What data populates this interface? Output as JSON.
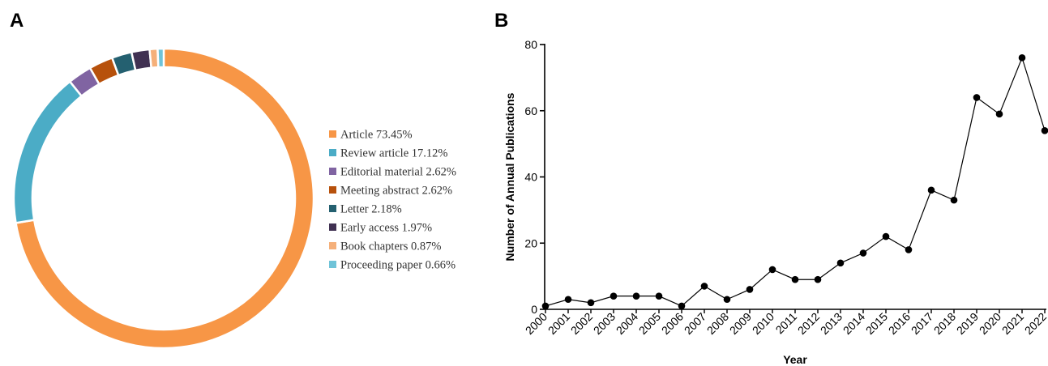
{
  "panels": {
    "a_letter": "A",
    "b_letter": "B"
  },
  "chart_data": [
    {
      "type": "pie",
      "style": "donut",
      "legend_position": "right",
      "slices": [
        {
          "label": "Article 73.45%",
          "value": 73.45,
          "color": "#F79646"
        },
        {
          "label": "Review article 17.12%",
          "value": 17.12,
          "color": "#4BACC6"
        },
        {
          "label": "Editorial material 2.62%",
          "value": 2.62,
          "color": "#8064A2"
        },
        {
          "label": "Meeting abstract 2.62%",
          "value": 2.62,
          "color": "#B7510C"
        },
        {
          "label": "Letter 2.18%",
          "value": 2.18,
          "color": "#246070"
        },
        {
          "label": "Early access 1.97%",
          "value": 1.97,
          "color": "#403152"
        },
        {
          "label": "Book chapters 0.87%",
          "value": 0.87,
          "color": "#F5B07A"
        },
        {
          "label": "Proceeding paper 0.66%",
          "value": 0.66,
          "color": "#6FC3D8"
        }
      ]
    },
    {
      "type": "line",
      "xlabel": "Year",
      "ylabel": "Number of Annual Publications",
      "ylim": [
        0,
        80
      ],
      "yticks": [
        0,
        20,
        40,
        60,
        80
      ],
      "grid": false,
      "markers": true,
      "color": "#000000",
      "x": [
        "2000",
        "2001",
        "2002",
        "2003",
        "2004",
        "2005",
        "2006",
        "2007",
        "2008",
        "2009",
        "2010",
        "2011",
        "2012",
        "2013",
        "2014",
        "2015",
        "2016",
        "2017",
        "2018",
        "2019",
        "2020",
        "2021",
        "2022"
      ],
      "values": [
        1,
        3,
        2,
        4,
        4,
        4,
        1,
        7,
        3,
        6,
        12,
        9,
        9,
        14,
        17,
        22,
        18,
        36,
        33,
        64,
        59,
        76,
        54
      ]
    }
  ]
}
